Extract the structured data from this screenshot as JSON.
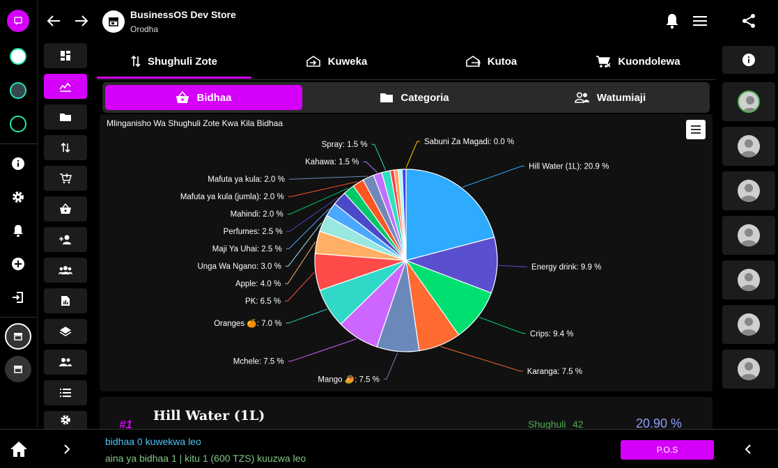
{
  "header": {
    "store_name": "BusinessOS Dev Store",
    "subtitle": "Orodha"
  },
  "tabs": [
    {
      "label": "Shughuli Zote",
      "icon": "swap-vertical-icon",
      "active": true
    },
    {
      "label": "Kuweka",
      "icon": "store-in-icon",
      "active": false
    },
    {
      "label": "Kutoa",
      "icon": "store-out-icon",
      "active": false
    },
    {
      "label": "Kuondolewa",
      "icon": "cart-remove-icon",
      "active": false
    }
  ],
  "subtabs": [
    {
      "label": "Bidhaa",
      "icon": "basket-icon",
      "active": true
    },
    {
      "label": "Categoria",
      "icon": "folder-icon",
      "active": false
    },
    {
      "label": "Watumiaji",
      "icon": "people-icon",
      "active": false
    }
  ],
  "chart_data": {
    "type": "pie",
    "title": "Mlinganisho Wa Shughuli Zote Kwa Kila Bidhaa",
    "slices": [
      {
        "name": "Hill Water (1L)",
        "value": 20.9,
        "color": "#2eaaff"
      },
      {
        "name": "Energy drink",
        "value": 9.9,
        "color": "#5a4fcf"
      },
      {
        "name": "Crips",
        "value": 9.4,
        "color": "#00e070"
      },
      {
        "name": "Karanga",
        "value": 7.5,
        "color": "#ff6a30"
      },
      {
        "name": "Mango 🥭",
        "value": 7.5,
        "color": "#6b88bb"
      },
      {
        "name": "Mchele",
        "value": 7.5,
        "color": "#cc66ff"
      },
      {
        "name": "Oranges 🍊",
        "value": 7.0,
        "color": "#30d8c8"
      },
      {
        "name": "PK",
        "value": 6.5,
        "color": "#ff4a4a"
      },
      {
        "name": "Apple",
        "value": 4.0,
        "color": "#ffb066"
      },
      {
        "name": "Unga Wa Ngano",
        "value": 3.0,
        "color": "#99e8e0"
      },
      {
        "name": "Maji Ya Uhai",
        "value": 2.5,
        "color": "#4aa8ff"
      },
      {
        "name": "Perfumes",
        "value": 2.5,
        "color": "#4a4ac8"
      },
      {
        "name": "Mahindi",
        "value": 2.0,
        "color": "#00c86a"
      },
      {
        "name": "Mafuta ya kula (jumla)",
        "value": 2.0,
        "color": "#ff5522"
      },
      {
        "name": "Mafuta ya kula",
        "value": 2.0,
        "color": "#7088b8"
      },
      {
        "name": "Kahawa",
        "value": 1.5,
        "color": "#c070ff"
      },
      {
        "name": "Spray",
        "value": 1.5,
        "color": "#30e0c0"
      },
      {
        "name": "Sabuni Za Magadi",
        "value": 0.0,
        "color": "#ffcc00"
      }
    ],
    "extra_slices_colors": [
      "#ff4040",
      "#ffa060",
      "#aaffee",
      "#4040ff"
    ]
  },
  "item": {
    "rank": "#1",
    "name": "Hill Water (1L)",
    "activity_label": "Shughuli",
    "activity_value": "42",
    "percent": "20.90 %"
  },
  "bottom": {
    "line1": "bidhaa 0 kuwekwa leo",
    "line2": "aina ya bidhaa 1 | kitu 1 (600 TZS) kuuzwa leo",
    "pos_label": "P.O.S"
  },
  "colors": {
    "accent": "#d500f9",
    "item_rank": "#d500f9",
    "activity_green": "#4caf50",
    "percent_blue": "#8c9eff",
    "bottom_line1": "#4fc3f7",
    "bottom_line2": "#81c784"
  }
}
